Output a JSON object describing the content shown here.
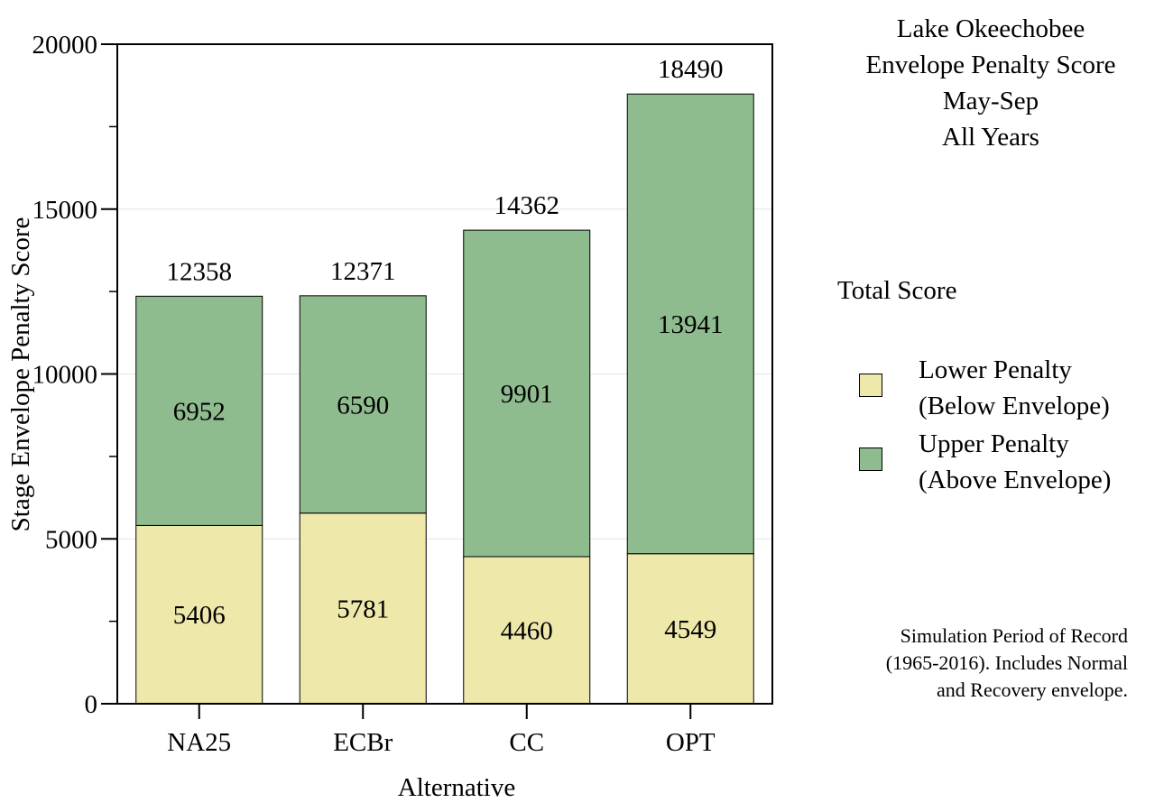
{
  "chart_data": {
    "type": "bar",
    "stacked": true,
    "categories": [
      "NA25",
      "ECBr",
      "CC",
      "OPT"
    ],
    "series": [
      {
        "name": "Lower Penalty (Below Envelope)",
        "values": [
          5406,
          5781,
          4460,
          4549
        ],
        "color": "#eee8aa"
      },
      {
        "name": "Upper Penalty (Above Envelope)",
        "values": [
          6952,
          6590,
          9901,
          13941
        ],
        "color": "#8fbc8f"
      }
    ],
    "totals": [
      12358,
      12371,
      14362,
      18490
    ],
    "xlabel": "Alternative",
    "ylabel": "Stage Envelope Penalty Score",
    "ylim": [
      0,
      20000
    ],
    "yticks": [
      0,
      5000,
      10000,
      15000,
      20000
    ],
    "grid": true,
    "legend_position": "right"
  },
  "title_lines": [
    "Lake Okeechobee",
    "Envelope Penalty Score",
    "May-Sep",
    "All Years"
  ],
  "legend": {
    "title": "Total Score",
    "items": [
      {
        "line1": "Lower Penalty",
        "line2": "(Below Envelope)",
        "color": "#eee8aa"
      },
      {
        "line1": "Upper Penalty",
        "line2": "(Above Envelope)",
        "color": "#8fbc8f"
      }
    ]
  },
  "note_lines": [
    "Simulation Period of Record",
    "(1965-2016). Includes Normal",
    "and Recovery envelope."
  ]
}
